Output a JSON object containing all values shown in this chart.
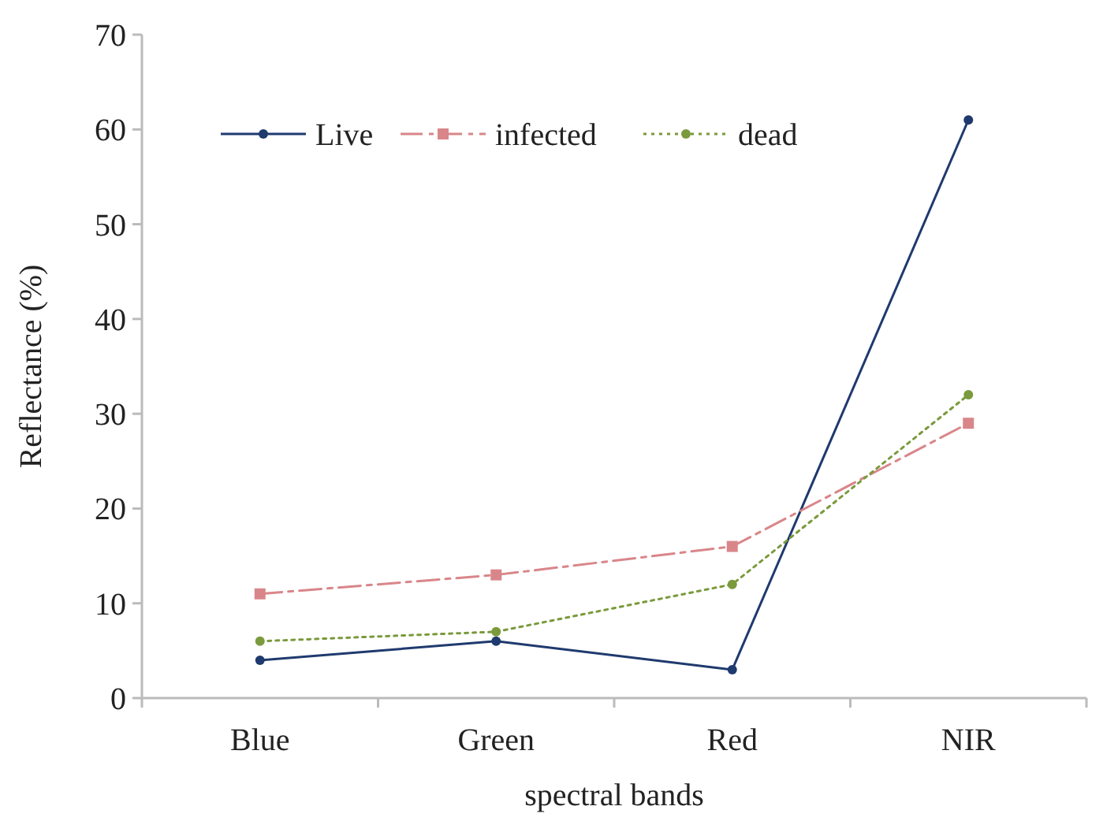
{
  "chart_data": {
    "type": "line",
    "xlabel": "spectral bands",
    "ylabel": "Reflectance (%)",
    "categories": [
      "Blue",
      "Green",
      "Red",
      "NIR"
    ],
    "series": [
      {
        "name": "Live",
        "color": "#1f3a6e",
        "values": [
          4,
          6,
          3,
          61
        ],
        "line_style": "solid",
        "marker": "circle"
      },
      {
        "name": "infected",
        "color": "#d9868a",
        "values": [
          11,
          13,
          16,
          29
        ],
        "line_style": "dashed",
        "marker": "square"
      },
      {
        "name": "dead",
        "color": "#7a9a3c",
        "values": [
          6,
          7,
          12,
          32
        ],
        "line_style": "dotted",
        "marker": "circle"
      }
    ],
    "ylim": [
      0,
      70
    ],
    "yticks": [
      0,
      10,
      20,
      30,
      40,
      50,
      60,
      70
    ],
    "grid": false,
    "legend": "top left"
  }
}
